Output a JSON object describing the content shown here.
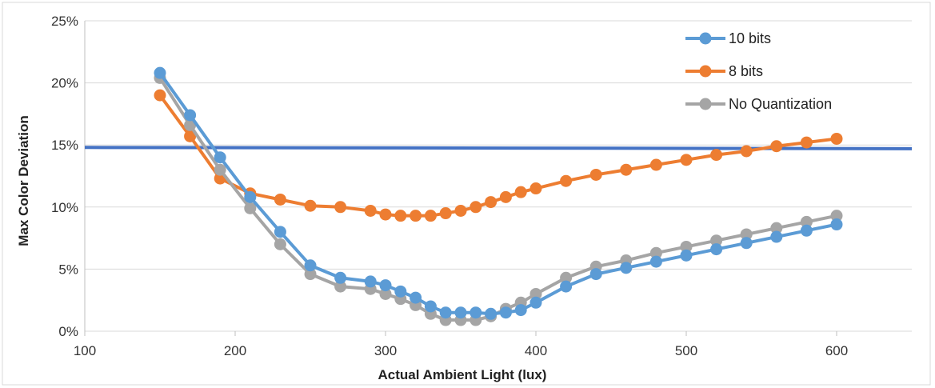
{
  "chart_data": {
    "type": "line",
    "title": "",
    "xlabel": "Actual Ambient Light (lux)",
    "ylabel": "Max Color Deviation",
    "xlim": [
      100,
      650
    ],
    "ylim": [
      0,
      25
    ],
    "x_ticks": [
      100,
      200,
      300,
      400,
      500,
      600
    ],
    "x_tick_labels": [
      "100",
      "200",
      "300",
      "400",
      "500",
      "600"
    ],
    "y_ticks": [
      0,
      5,
      10,
      15,
      20,
      25
    ],
    "y_tick_labels": [
      "0%",
      "5%",
      "10%",
      "15%",
      "20%",
      "25%"
    ],
    "grid": "horizontal",
    "legend_position": "top-right",
    "series": [
      {
        "name": "10 bits",
        "color": "#5b9bd5",
        "x": [
          150,
          170,
          190,
          210,
          230,
          250,
          270,
          290,
          300,
          310,
          320,
          330,
          340,
          350,
          360,
          370,
          380,
          390,
          400,
          420,
          440,
          460,
          480,
          500,
          520,
          540,
          560,
          580,
          600
        ],
        "values": [
          20.8,
          17.4,
          14.0,
          10.8,
          8.0,
          5.3,
          4.3,
          4.0,
          3.7,
          3.2,
          2.7,
          2.0,
          1.5,
          1.5,
          1.5,
          1.4,
          1.5,
          1.7,
          2.3,
          3.6,
          4.6,
          5.1,
          5.6,
          6.1,
          6.6,
          7.1,
          7.6,
          8.1,
          8.6
        ]
      },
      {
        "name": "8 bits",
        "color": "#ed7d31",
        "x": [
          150,
          170,
          190,
          210,
          230,
          250,
          270,
          290,
          300,
          310,
          320,
          330,
          340,
          350,
          360,
          370,
          380,
          390,
          400,
          420,
          440,
          460,
          480,
          500,
          520,
          540,
          560,
          580,
          600
        ],
        "values": [
          19.0,
          15.7,
          12.3,
          11.1,
          10.6,
          10.1,
          10.0,
          9.7,
          9.4,
          9.3,
          9.3,
          9.3,
          9.5,
          9.7,
          10.0,
          10.4,
          10.8,
          11.2,
          11.5,
          12.1,
          12.6,
          13.0,
          13.4,
          13.8,
          14.2,
          14.5,
          14.9,
          15.2,
          15.5
        ]
      },
      {
        "name": "No Quantization",
        "color": "#a5a5a5",
        "x": [
          150,
          170,
          190,
          210,
          230,
          250,
          270,
          290,
          300,
          310,
          320,
          330,
          340,
          350,
          360,
          370,
          380,
          390,
          400,
          420,
          440,
          460,
          480,
          500,
          520,
          540,
          560,
          580,
          600
        ],
        "values": [
          20.4,
          16.6,
          13.0,
          9.9,
          7.0,
          4.6,
          3.6,
          3.4,
          3.0,
          2.6,
          2.1,
          1.4,
          0.9,
          0.9,
          0.9,
          1.2,
          1.8,
          2.3,
          3.0,
          4.3,
          5.2,
          5.7,
          6.3,
          6.8,
          7.3,
          7.8,
          8.3,
          8.8,
          9.3
        ]
      }
    ],
    "reference_line": {
      "color": "#4472c4",
      "x": [
        100,
        650
      ],
      "values": [
        14.8,
        14.7
      ]
    }
  }
}
